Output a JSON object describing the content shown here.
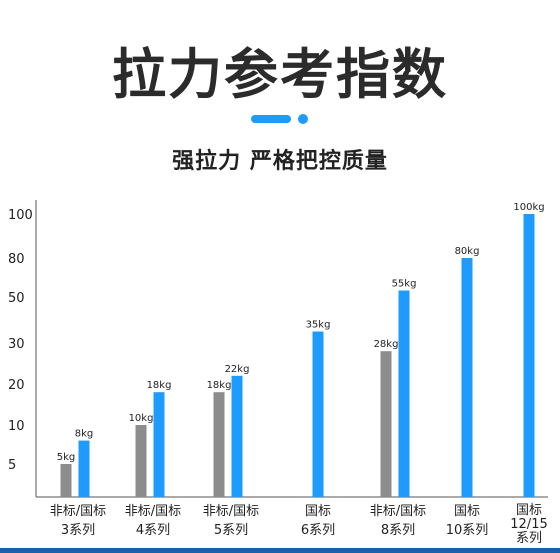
{
  "title": "拉力参考指数",
  "subtitle": "强拉力 严格把控质量",
  "colors": {
    "gray": "#8c8c8c",
    "blue": "#1e9bff",
    "text": "#222222"
  },
  "chart_data": {
    "type": "bar",
    "y_tick_labels": [
      "5",
      "10",
      "20",
      "30",
      "50",
      "80",
      "100"
    ],
    "categories": [
      {
        "lines": [
          "非标/国标",
          "3系列"
        ],
        "bars": [
          {
            "kind": "gray",
            "value": 5,
            "label": "5kg"
          },
          {
            "kind": "blue",
            "value": 8,
            "label": "8kg"
          }
        ]
      },
      {
        "lines": [
          "非标/国标",
          "4系列"
        ],
        "bars": [
          {
            "kind": "gray",
            "value": 10,
            "label": "10kg"
          },
          {
            "kind": "blue",
            "value": 18,
            "label": "18kg"
          }
        ]
      },
      {
        "lines": [
          "非标/国标",
          "5系列"
        ],
        "bars": [
          {
            "kind": "gray",
            "value": 18,
            "label": "18kg"
          },
          {
            "kind": "blue",
            "value": 22,
            "label": "22kg"
          }
        ]
      },
      {
        "lines": [
          "国标",
          "6系列"
        ],
        "bars": [
          {
            "kind": "blue",
            "value": 35,
            "label": "35kg"
          }
        ]
      },
      {
        "lines": [
          "非标/国标",
          "8系列"
        ],
        "bars": [
          {
            "kind": "gray",
            "value": 28,
            "label": "28kg"
          },
          {
            "kind": "blue",
            "value": 55,
            "label": "55kg"
          }
        ]
      },
      {
        "lines": [
          "国标",
          "10系列"
        ],
        "bars": [
          {
            "kind": "blue",
            "value": 80,
            "label": "80kg"
          }
        ]
      },
      {
        "lines": [
          "国标",
          "12/15",
          "系列"
        ],
        "bars": [
          {
            "kind": "blue",
            "value": 100,
            "label": "100kg"
          }
        ]
      }
    ]
  }
}
